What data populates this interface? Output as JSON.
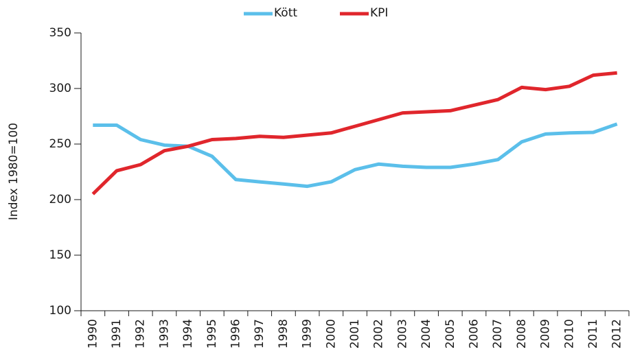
{
  "chart_data": {
    "type": "line",
    "ylabel": "Index 1980=100",
    "categories": [
      "1990",
      "1991",
      "1992",
      "1993",
      "1994",
      "1995",
      "1996",
      "1997",
      "1998",
      "1999",
      "2000",
      "2001",
      "2002",
      "2003",
      "2004",
      "2005",
      "2006",
      "2007",
      "2008",
      "2009",
      "2010",
      "2011",
      "2012"
    ],
    "series": [
      {
        "name": "Kött",
        "color": "#5bbfea",
        "values": [
          267,
          267,
          254,
          249,
          248,
          239,
          218,
          216,
          214,
          212,
          216,
          227,
          232,
          230,
          229,
          229,
          232,
          236,
          252,
          259,
          260,
          260.5,
          268
        ]
      },
      {
        "name": "KPI",
        "color": "#e0262c",
        "values": [
          205,
          226,
          231.5,
          244,
          248,
          254,
          255,
          257,
          256,
          258,
          260,
          266,
          272,
          278,
          279,
          280,
          285,
          290,
          301,
          299,
          302,
          312,
          314
        ]
      }
    ],
    "ylim": [
      100,
      350
    ],
    "yticks": [
      100,
      150,
      200,
      250,
      300,
      350
    ],
    "legend": "top"
  }
}
